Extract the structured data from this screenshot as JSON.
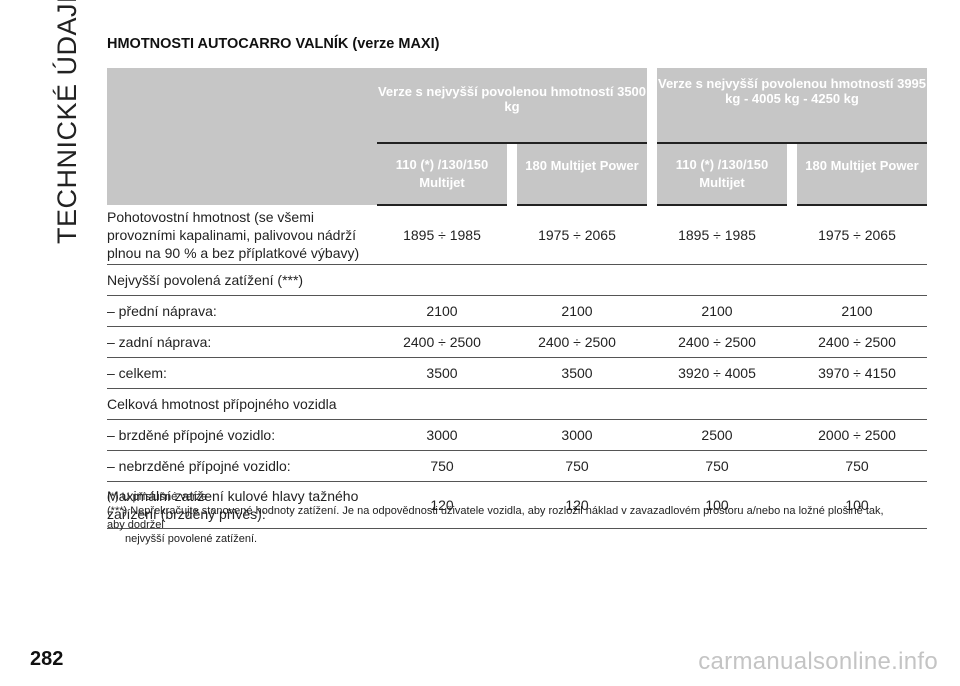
{
  "side_title": "TECHNICKÉ ÚDAJE",
  "page_number": "282",
  "section_title": "HMOTNOSTI AUTOCARRO VALNÍK (verze MAXI)",
  "table": {
    "groups": [
      "Verze s nejvyšší povolenou hmotností 3500 kg",
      "Verze s nejvyšší povolenou hmotností 3995 kg - 4005 kg - 4250 kg"
    ],
    "engines": [
      "110 (*) /130/150 Multijet",
      "180 Multijet Power",
      "110 (*) /130/150 Multijet",
      "180 Multijet Power"
    ],
    "rows": [
      {
        "label": "Pohotovostní hmotnost (se všemi provozními kapalinami, palivovou nádrží plnou na 90 % a bez příplatkové výbavy)",
        "values": [
          "1895 ÷ 1985",
          "1975 ÷ 2065",
          "1895 ÷ 1985",
          "1975 ÷ 2065"
        ]
      },
      {
        "label": "Nejvyšší povolená zatížení (***)",
        "values": [
          "",
          "",
          "",
          ""
        ]
      },
      {
        "label": "– přední náprava:",
        "values": [
          "2100",
          "2100",
          "2100",
          "2100"
        ]
      },
      {
        "label": "– zadní náprava:",
        "values": [
          "2400 ÷ 2500",
          "2400 ÷ 2500",
          "2400 ÷ 2500",
          "2400 ÷ 2500"
        ]
      },
      {
        "label": "– celkem:",
        "values": [
          "3500",
          "3500",
          "3920 ÷ 4005",
          "3970 ÷ 4150"
        ]
      },
      {
        "label": "Celková hmotnost přípojného vozidla",
        "values": [
          "",
          "",
          "",
          ""
        ]
      },
      {
        "label": "– brzděné přípojné vozidlo:",
        "values": [
          "3000",
          "3000",
          "2500",
          "2000 ÷ 2500"
        ]
      },
      {
        "label": "– nebrzděné přípojné vozidlo:",
        "values": [
          "750",
          "750",
          "750",
          "750"
        ]
      },
      {
        "label": "Maximální zatížení kulové hlavy tažného zařízení (brzděný přívěs):",
        "values": [
          "120",
          "120",
          "100",
          "100"
        ]
      }
    ]
  },
  "footnotes": {
    "note1": "(*) U příslušné verze",
    "note2_line1": "(***) Nepřekračujte stanovené hodnoty zatížení. Je na odpovědnosti uživatele vozidla, aby rozložil náklad v zavazadlovém prostoru a/nebo na ložné plošině tak, aby dodržel",
    "note2_line2": "nejvyšší povolené zatížení."
  },
  "watermark": "carmanualsonline.info"
}
